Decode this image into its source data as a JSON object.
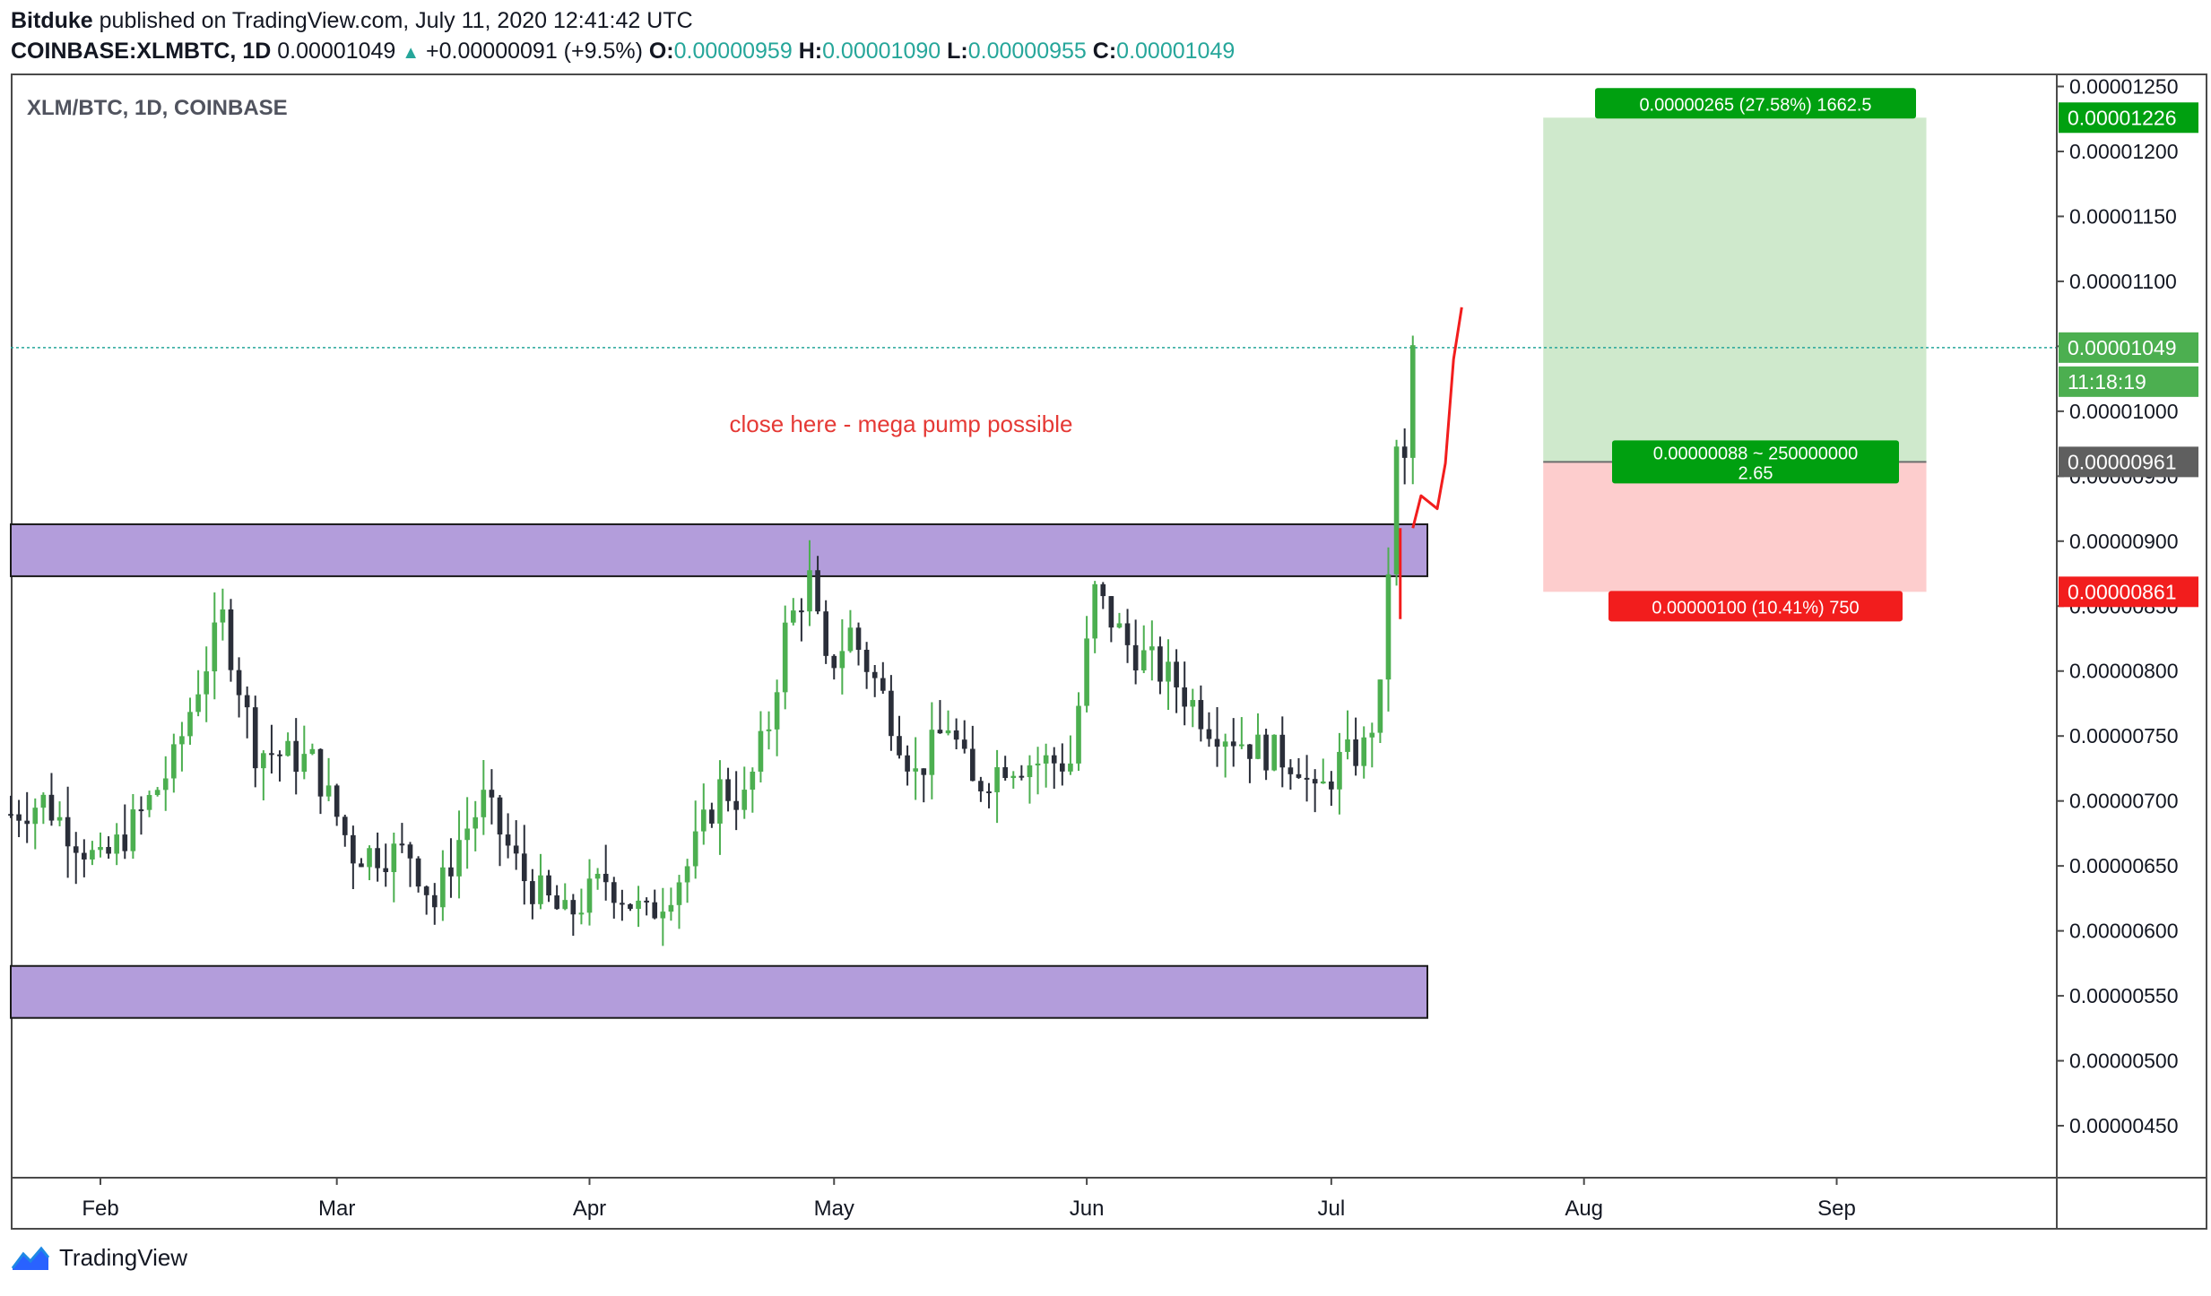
{
  "header": {
    "author": "Bitduke",
    "published": "published on TradingView.com, July 11, 2020 12:41:42 UTC",
    "symbol": "COINBASE:XLMBTC, 1D",
    "last": "0.00001049",
    "change": "+0.00000091 (+9.5%)",
    "o_label": "O:",
    "o": "0.00000959",
    "h_label": "H:",
    "h": "0.00001090",
    "l_label": "L:",
    "l": "0.00000955",
    "c_label": "C:",
    "c": "0.00001049"
  },
  "legend_title": "XLM/BTC, 1D, COINBASE",
  "annotation": "close here - mega pump possible",
  "footer": {
    "brand": "TradingView",
    "logo_icon": "tradingview-logo-icon"
  },
  "colors": {
    "up": "#4caf50",
    "down": "#2a2e39",
    "zone": "#b39ddb",
    "target": "#cfe9cc",
    "stop": "#fdcdcd",
    "accent_red": "#f21d1d",
    "accent_green": "#089981"
  },
  "price_labels": {
    "target": "0.00001226",
    "last": "0.00001049",
    "countdown": "11:18:19",
    "entry": "0.00000961",
    "stop": "0.00000861"
  },
  "position": {
    "target_text": "0.00000265 (27.58%) 1662.5",
    "entry_text1": "0.00000088 ~ 250000000",
    "entry_text2": "2.65",
    "stop_text": "0.00000100 (10.41%) 750"
  },
  "chart_data": {
    "type": "candlestick",
    "title": "XLM/BTC, 1D, COINBASE",
    "x_tick_labels": [
      "Feb",
      "Mar",
      "Apr",
      "May",
      "Jun",
      "Jul",
      "Aug",
      "Sep"
    ],
    "y_tick_labels": [
      "0.00001250",
      "0.00001200",
      "0.00001150",
      "0.00001100",
      "0.00001050",
      "0.00001000",
      "0.00000950",
      "0.00000900",
      "0.00000850",
      "0.00000800",
      "0.00000750",
      "0.00000700",
      "0.00000650",
      "0.00000600",
      "0.00000550",
      "0.00000500",
      "0.00000450"
    ],
    "ylim": [
      4.1e-06,
      1.26e-05
    ],
    "x_start": "2020-01-21",
    "x_end": "2020-09-28",
    "grid": false,
    "zones": [
      {
        "from": 8.73e-06,
        "to": 9.13e-06
      },
      {
        "from": 5.33e-06,
        "to": 5.73e-06
      }
    ],
    "long_position": {
      "target": 1.226e-05,
      "entry": 9.61e-06,
      "stop": 8.61e-06,
      "start": "2020-07-27",
      "end": "2020-09-12"
    },
    "last_price": 1.049e-05,
    "anchors": [
      {
        "date": "2020-01-21",
        "price": 6.9e-06
      },
      {
        "date": "2020-01-25",
        "price": 7e-06
      },
      {
        "date": "2020-02-01",
        "price": 6.5e-06
      },
      {
        "date": "2020-02-06",
        "price": 6.9e-06
      },
      {
        "date": "2020-02-10",
        "price": 7.3e-06
      },
      {
        "date": "2020-02-13",
        "price": 7.9e-06
      },
      {
        "date": "2020-02-16",
        "price": 8.4e-06
      },
      {
        "date": "2020-02-20",
        "price": 7.4e-06
      },
      {
        "date": "2020-02-27",
        "price": 7.3e-06
      },
      {
        "date": "2020-03-03",
        "price": 6.6e-06
      },
      {
        "date": "2020-03-10",
        "price": 6.6e-06
      },
      {
        "date": "2020-03-13",
        "price": 6.2e-06
      },
      {
        "date": "2020-03-16",
        "price": 6.7e-06
      },
      {
        "date": "2020-03-19",
        "price": 7e-06
      },
      {
        "date": "2020-03-24",
        "price": 6.4e-06
      },
      {
        "date": "2020-03-29",
        "price": 6.1e-06
      },
      {
        "date": "2020-04-03",
        "price": 6.4e-06
      },
      {
        "date": "2020-04-08",
        "price": 6.1e-06
      },
      {
        "date": "2020-04-13",
        "price": 6.5e-06
      },
      {
        "date": "2020-04-17",
        "price": 7.1e-06
      },
      {
        "date": "2020-04-20",
        "price": 7e-06
      },
      {
        "date": "2020-04-23",
        "price": 7.6e-06
      },
      {
        "date": "2020-04-25",
        "price": 8.3e-06
      },
      {
        "date": "2020-04-28",
        "price": 8.7e-06
      },
      {
        "date": "2020-04-30",
        "price": 8e-06
      },
      {
        "date": "2020-05-03",
        "price": 8.3e-06
      },
      {
        "date": "2020-05-07",
        "price": 7.8e-06
      },
      {
        "date": "2020-05-11",
        "price": 7.2e-06
      },
      {
        "date": "2020-05-15",
        "price": 7.6e-06
      },
      {
        "date": "2020-05-18",
        "price": 7.1e-06
      },
      {
        "date": "2020-05-22",
        "price": 7.3e-06
      },
      {
        "date": "2020-05-26",
        "price": 7.3e-06
      },
      {
        "date": "2020-05-30",
        "price": 7.3e-06
      },
      {
        "date": "2020-06-02",
        "price": 8.6e-06
      },
      {
        "date": "2020-06-06",
        "price": 8.2e-06
      },
      {
        "date": "2020-06-12",
        "price": 7.9e-06
      },
      {
        "date": "2020-06-16",
        "price": 7.6e-06
      },
      {
        "date": "2020-06-22",
        "price": 7.4e-06
      },
      {
        "date": "2020-06-27",
        "price": 7.3e-06
      },
      {
        "date": "2020-06-29",
        "price": 7e-06
      },
      {
        "date": "2020-07-02",
        "price": 7.3e-06
      },
      {
        "date": "2020-07-05",
        "price": 7.4e-06
      },
      {
        "date": "2020-07-07",
        "price": 7.8e-06
      },
      {
        "date": "2020-07-08",
        "price": 8.8e-06
      },
      {
        "date": "2020-07-09",
        "price": 9.65e-06
      },
      {
        "date": "2020-07-10",
        "price": 9.58e-06
      },
      {
        "date": "2020-07-11",
        "price": 1.049e-05
      }
    ],
    "projection": [
      {
        "date": "2020-07-11",
        "price": 9.1e-06
      },
      {
        "date": "2020-07-12",
        "price": 9.35e-06
      },
      {
        "date": "2020-07-14",
        "price": 9.25e-06
      },
      {
        "date": "2020-07-15",
        "price": 9.6e-06
      },
      {
        "date": "2020-07-16",
        "price": 1.04e-05
      },
      {
        "date": "2020-07-17",
        "price": 1.08e-05
      }
    ]
  }
}
